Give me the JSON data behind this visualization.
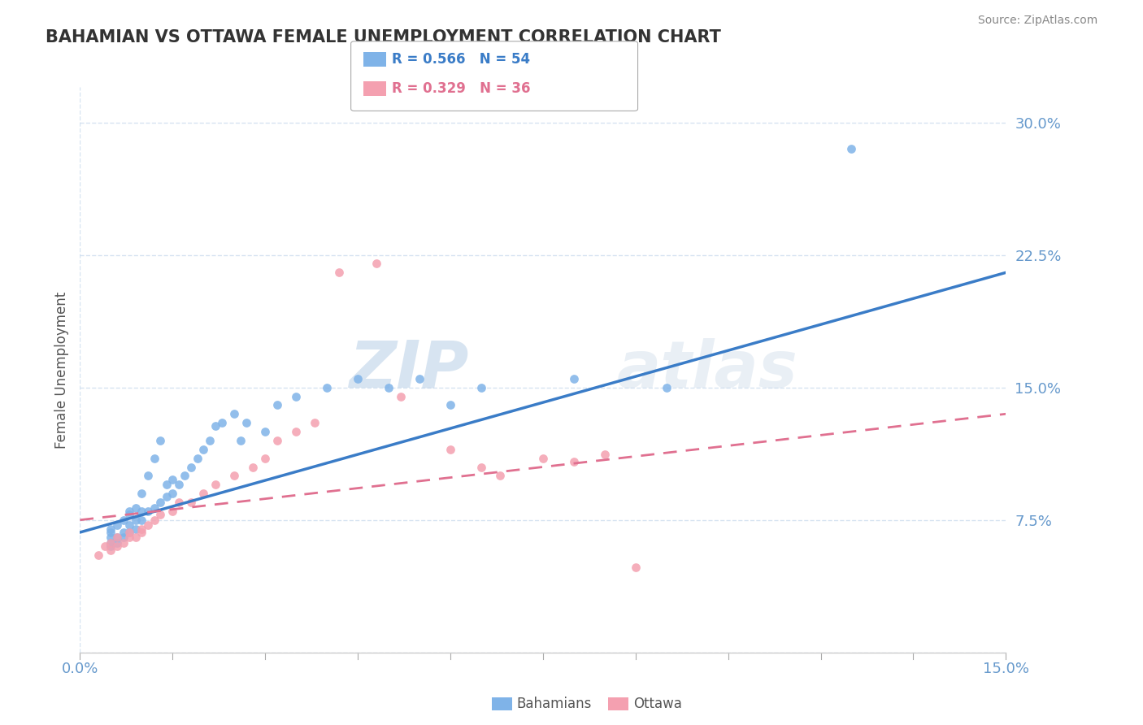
{
  "title": "BAHAMIAN VS OTTAWA FEMALE UNEMPLOYMENT CORRELATION CHART",
  "source": "Source: ZipAtlas.com",
  "xlabel": "",
  "ylabel": "Female Unemployment",
  "xmin": 0.0,
  "xmax": 0.15,
  "ymin": 0.0,
  "ymax": 0.32,
  "yticks": [
    0.0,
    0.075,
    0.15,
    0.225,
    0.3
  ],
  "ytick_labels": [
    "",
    "7.5%",
    "15.0%",
    "22.5%",
    "30.0%"
  ],
  "xtick_labels": [
    "0.0%",
    "15.0%"
  ],
  "blue_R": 0.566,
  "blue_N": 54,
  "pink_R": 0.329,
  "pink_N": 36,
  "blue_color": "#7fb3e8",
  "pink_color": "#f4a0b0",
  "blue_line_color": "#3a7cc7",
  "pink_line_color": "#e07090",
  "watermark_zip": "ZIP",
  "watermark_atlas": "atlas",
  "blue_scatter_x": [
    0.005,
    0.005,
    0.005,
    0.005,
    0.005,
    0.006,
    0.006,
    0.006,
    0.007,
    0.007,
    0.007,
    0.008,
    0.008,
    0.008,
    0.008,
    0.009,
    0.009,
    0.009,
    0.01,
    0.01,
    0.01,
    0.011,
    0.011,
    0.012,
    0.012,
    0.013,
    0.013,
    0.014,
    0.014,
    0.015,
    0.015,
    0.016,
    0.017,
    0.018,
    0.019,
    0.02,
    0.021,
    0.022,
    0.023,
    0.025,
    0.026,
    0.027,
    0.03,
    0.032,
    0.035,
    0.04,
    0.045,
    0.05,
    0.055,
    0.06,
    0.065,
    0.08,
    0.095,
    0.125
  ],
  "blue_scatter_y": [
    0.06,
    0.062,
    0.065,
    0.068,
    0.07,
    0.062,
    0.065,
    0.072,
    0.065,
    0.068,
    0.075,
    0.068,
    0.072,
    0.078,
    0.08,
    0.07,
    0.075,
    0.082,
    0.075,
    0.08,
    0.09,
    0.08,
    0.1,
    0.082,
    0.11,
    0.085,
    0.12,
    0.088,
    0.095,
    0.09,
    0.098,
    0.095,
    0.1,
    0.105,
    0.11,
    0.115,
    0.12,
    0.128,
    0.13,
    0.135,
    0.12,
    0.13,
    0.125,
    0.14,
    0.145,
    0.15,
    0.155,
    0.15,
    0.155,
    0.14,
    0.15,
    0.155,
    0.15,
    0.285
  ],
  "pink_scatter_x": [
    0.003,
    0.004,
    0.005,
    0.005,
    0.006,
    0.006,
    0.007,
    0.008,
    0.008,
    0.009,
    0.01,
    0.01,
    0.011,
    0.012,
    0.013,
    0.015,
    0.016,
    0.018,
    0.02,
    0.022,
    0.025,
    0.028,
    0.03,
    0.032,
    0.035,
    0.038,
    0.042,
    0.048,
    0.052,
    0.06,
    0.065,
    0.068,
    0.075,
    0.08,
    0.085,
    0.09
  ],
  "pink_scatter_y": [
    0.055,
    0.06,
    0.058,
    0.062,
    0.06,
    0.065,
    0.062,
    0.065,
    0.068,
    0.065,
    0.068,
    0.07,
    0.072,
    0.075,
    0.078,
    0.08,
    0.085,
    0.085,
    0.09,
    0.095,
    0.1,
    0.105,
    0.11,
    0.12,
    0.125,
    0.13,
    0.215,
    0.22,
    0.145,
    0.115,
    0.105,
    0.1,
    0.11,
    0.108,
    0.112,
    0.048
  ],
  "blue_line_x": [
    0.0,
    0.15
  ],
  "blue_line_y": [
    0.068,
    0.215
  ],
  "pink_line_x": [
    0.0,
    0.15
  ],
  "pink_line_y": [
    0.075,
    0.135
  ],
  "title_color": "#333333",
  "axis_color": "#6699cc",
  "tick_color": "#6699cc",
  "grid_color": "#ccddee",
  "background_color": "#ffffff"
}
